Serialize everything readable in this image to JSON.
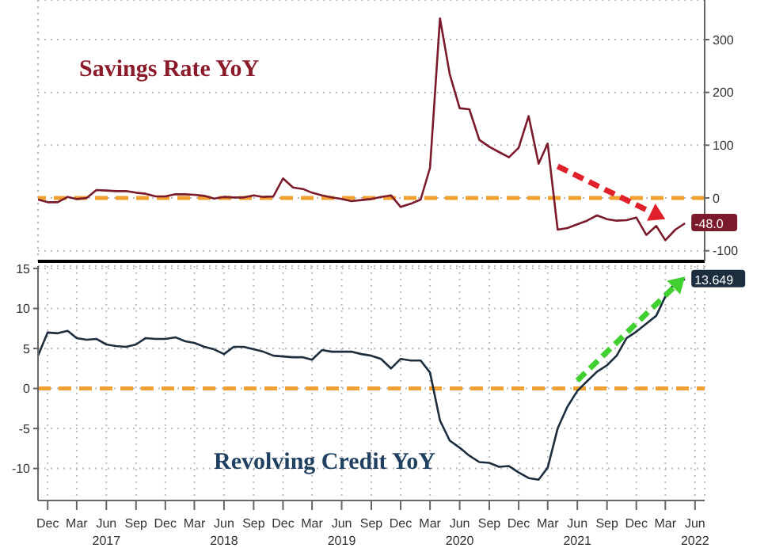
{
  "chart_data": [
    {
      "type": "line",
      "title": "Savings Rate YoY",
      "x": [
        "2016-11",
        "2016-12",
        "2017-01",
        "2017-02",
        "2017-03",
        "2017-04",
        "2017-05",
        "2017-06",
        "2017-07",
        "2017-08",
        "2017-09",
        "2017-10",
        "2017-11",
        "2017-12",
        "2018-01",
        "2018-02",
        "2018-03",
        "2018-04",
        "2018-05",
        "2018-06",
        "2018-07",
        "2018-08",
        "2018-09",
        "2018-10",
        "2018-11",
        "2018-12",
        "2019-01",
        "2019-02",
        "2019-03",
        "2019-04",
        "2019-05",
        "2019-06",
        "2019-07",
        "2019-08",
        "2019-09",
        "2019-10",
        "2019-11",
        "2019-12",
        "2020-01",
        "2020-02",
        "2020-03",
        "2020-04",
        "2020-05",
        "2020-06",
        "2020-07",
        "2020-08",
        "2020-09",
        "2020-10",
        "2020-11",
        "2020-12",
        "2021-01",
        "2021-02",
        "2021-03",
        "2021-04",
        "2021-05",
        "2021-06",
        "2021-07",
        "2021-08",
        "2021-09",
        "2021-10",
        "2021-11",
        "2021-12",
        "2022-01",
        "2022-02",
        "2022-03",
        "2022-04",
        "2022-05"
      ],
      "series": [
        {
          "color": "#7a1a2a",
          "values": [
            -3,
            -8,
            -8,
            2,
            -2,
            0,
            15,
            14,
            13,
            13,
            10,
            8,
            3,
            3,
            7,
            7,
            6,
            4,
            -1,
            2,
            1,
            1,
            5,
            2,
            3,
            37,
            20,
            17,
            10,
            5,
            1,
            -2,
            -6,
            -4,
            -2,
            2,
            5,
            -17,
            -11,
            -3,
            57,
            340,
            235,
            170,
            168,
            110,
            97,
            87,
            77,
            95,
            155,
            65,
            103,
            -60,
            -57,
            -50,
            -43,
            -33,
            -40,
            -43,
            -42,
            -37,
            -70,
            -53,
            -80,
            -60,
            -48.0
          ],
          "value_labels": [
            null,
            null,
            null,
            null,
            null,
            null,
            null,
            null,
            null,
            null,
            null,
            null,
            null,
            null,
            null,
            null,
            null,
            null,
            null,
            null,
            null,
            null,
            null,
            null,
            null,
            null,
            null,
            null,
            null,
            null,
            null,
            null,
            null,
            null,
            null,
            null,
            null,
            null,
            null,
            null,
            null,
            null,
            null,
            null,
            null,
            null,
            null,
            null,
            null,
            null,
            null,
            null,
            null,
            null,
            null,
            null,
            null,
            null,
            null,
            null,
            null,
            null,
            null,
            null,
            null,
            null,
            "-48.0"
          ]
        }
      ],
      "xlim": [
        "2016-11",
        "2022-07"
      ],
      "xticks": [
        {
          "value": "2016-12",
          "label": null
        },
        {
          "value": "2017-03",
          "label": null
        },
        {
          "value": "2017-06",
          "label": null
        },
        {
          "value": "2017-09",
          "label": null
        },
        {
          "value": "2017-12",
          "label": null
        },
        {
          "value": "2018-03",
          "label": null
        },
        {
          "value": "2018-06",
          "label": null
        },
        {
          "value": "2018-09",
          "label": null
        },
        {
          "value": "2018-12",
          "label": null
        },
        {
          "value": "2019-03",
          "label": null
        },
        {
          "value": "2019-06",
          "label": null
        },
        {
          "value": "2019-09",
          "label": null
        },
        {
          "value": "2019-12",
          "label": null
        },
        {
          "value": "2020-03",
          "label": null
        },
        {
          "value": "2020-06",
          "label": null
        },
        {
          "value": "2020-09",
          "label": null
        },
        {
          "value": "2020-12",
          "label": null
        },
        {
          "value": "2021-03",
          "label": null
        },
        {
          "value": "2021-06",
          "label": null
        },
        {
          "value": "2021-09",
          "label": null
        },
        {
          "value": "2021-12",
          "label": null
        },
        {
          "value": "2022-03",
          "label": null
        },
        {
          "value": "2022-06",
          "label": null
        }
      ],
      "ylim": [
        -120,
        375
      ],
      "yticks": [
        -100,
        0,
        100,
        200,
        300
      ],
      "grid": true,
      "tick_labels": "y",
      "ref_lines": [
        {
          "axis": "y",
          "value": 0,
          "color": "#f0a030",
          "line_style": "dashed"
        }
      ]
    },
    {
      "type": "line",
      "title": "Revolving Credit YoY",
      "x": [
        "2016-11",
        "2016-12",
        "2017-01",
        "2017-02",
        "2017-03",
        "2017-04",
        "2017-05",
        "2017-06",
        "2017-07",
        "2017-08",
        "2017-09",
        "2017-10",
        "2017-11",
        "2017-12",
        "2018-01",
        "2018-02",
        "2018-03",
        "2018-04",
        "2018-05",
        "2018-06",
        "2018-07",
        "2018-08",
        "2018-09",
        "2018-10",
        "2018-11",
        "2018-12",
        "2019-01",
        "2019-02",
        "2019-03",
        "2019-04",
        "2019-05",
        "2019-06",
        "2019-07",
        "2019-08",
        "2019-09",
        "2019-10",
        "2019-11",
        "2019-12",
        "2020-01",
        "2020-02",
        "2020-03",
        "2020-04",
        "2020-05",
        "2020-06",
        "2020-07",
        "2020-08",
        "2020-09",
        "2020-10",
        "2020-11",
        "2020-12",
        "2021-01",
        "2021-02",
        "2021-03",
        "2021-04",
        "2021-05",
        "2021-06",
        "2021-07",
        "2021-08",
        "2021-09",
        "2021-10",
        "2021-11",
        "2021-12",
        "2022-01",
        "2022-02",
        "2022-03",
        "2022-04",
        "2022-05"
      ],
      "series": [
        {
          "color": "#1c2e3e",
          "values": [
            4.1,
            7.0,
            6.9,
            7.2,
            6.3,
            6.1,
            6.2,
            5.5,
            5.3,
            5.2,
            5.5,
            6.3,
            6.2,
            6.2,
            6.4,
            5.9,
            5.7,
            5.2,
            4.9,
            4.3,
            5.2,
            5.2,
            4.9,
            4.6,
            4.1,
            4.0,
            3.9,
            3.9,
            3.6,
            4.8,
            4.6,
            4.6,
            4.6,
            4.3,
            4.1,
            3.7,
            2.5,
            3.7,
            3.5,
            3.5,
            2.0,
            -4.0,
            -6.5,
            -7.4,
            -8.4,
            -9.2,
            -9.3,
            -9.8,
            -9.7,
            -10.5,
            -11.2,
            -11.4,
            -9.9,
            -5.0,
            -2.3,
            -0.3,
            0.9,
            2.1,
            2.9,
            4.1,
            6.3,
            7.1,
            8.1,
            9.1,
            11.5,
            13.3,
            13.649
          ],
          "value_labels": [
            null,
            null,
            null,
            null,
            null,
            null,
            null,
            null,
            null,
            null,
            null,
            null,
            null,
            null,
            null,
            null,
            null,
            null,
            null,
            null,
            null,
            null,
            null,
            null,
            null,
            null,
            null,
            null,
            null,
            null,
            null,
            null,
            null,
            null,
            null,
            null,
            null,
            null,
            null,
            null,
            null,
            null,
            null,
            null,
            null,
            null,
            null,
            null,
            null,
            null,
            null,
            null,
            null,
            null,
            null,
            null,
            null,
            null,
            null,
            null,
            null,
            null,
            null,
            null,
            null,
            null,
            "13.649"
          ]
        }
      ],
      "xlim": [
        "2016-11",
        "2022-07"
      ],
      "xticks": [
        {
          "value": "2016-12",
          "label": "Dec"
        },
        {
          "value": "2017-03",
          "label": "Mar"
        },
        {
          "value": "2017-06",
          "label": "Jun 2017"
        },
        {
          "value": "2017-09",
          "label": "Sep"
        },
        {
          "value": "2017-12",
          "label": "Dec"
        },
        {
          "value": "2018-03",
          "label": "Mar"
        },
        {
          "value": "2018-06",
          "label": "Jun 2018"
        },
        {
          "value": "2018-09",
          "label": "Sep"
        },
        {
          "value": "2018-12",
          "label": "Dec"
        },
        {
          "value": "2019-03",
          "label": "Mar"
        },
        {
          "value": "2019-06",
          "label": "Jun 2019"
        },
        {
          "value": "2019-09",
          "label": "Sep"
        },
        {
          "value": "2019-12",
          "label": "Dec"
        },
        {
          "value": "2020-03",
          "label": "Mar"
        },
        {
          "value": "2020-06",
          "label": "Jun 2020"
        },
        {
          "value": "2020-09",
          "label": "Sep"
        },
        {
          "value": "2020-12",
          "label": "Dec"
        },
        {
          "value": "2021-03",
          "label": "Mar"
        },
        {
          "value": "2021-06",
          "label": "Jun 2021"
        },
        {
          "value": "2021-09",
          "label": "Sep"
        },
        {
          "value": "2021-12",
          "label": "Dec"
        },
        {
          "value": "2022-03",
          "label": "Mar"
        },
        {
          "value": "2022-06",
          "label": "Jun 2022"
        }
      ],
      "ylim": [
        -14,
        15.3
      ],
      "yticks": [
        -10,
        -5,
        0,
        5,
        10,
        15
      ],
      "grid": true,
      "ref_lines": [
        {
          "axis": "y",
          "value": 0,
          "color": "#f0a030",
          "line_style": "dashed"
        }
      ]
    }
  ]
}
